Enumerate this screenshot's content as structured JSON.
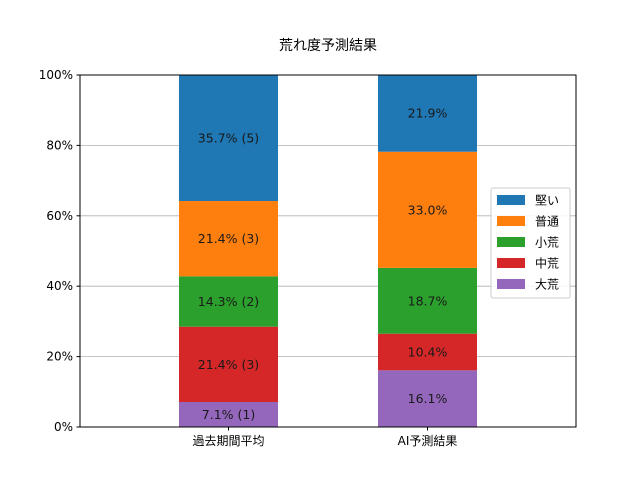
{
  "chart_data": {
    "type": "bar",
    "stacked": true,
    "title": "荒れ度予測結果",
    "categories": [
      "過去期間平均",
      "AI予測結果"
    ],
    "ylim": [
      0,
      100
    ],
    "yticks": [
      "0%",
      "20%",
      "40%",
      "60%",
      "80%",
      "100%"
    ],
    "grid": "horizontal",
    "legend_position": "right",
    "series": [
      {
        "name": "大荒",
        "color": "#9467bd",
        "values": [
          7.1,
          16.1
        ],
        "labels": [
          "7.1% (1)",
          "16.1%"
        ]
      },
      {
        "name": "中荒",
        "color": "#d62728",
        "values": [
          21.4,
          10.4
        ],
        "labels": [
          "21.4% (3)",
          "10.4%"
        ]
      },
      {
        "name": "小荒",
        "color": "#2ca02c",
        "values": [
          14.3,
          18.7
        ],
        "labels": [
          "14.3% (2)",
          "18.7%"
        ]
      },
      {
        "name": "普通",
        "color": "#ff7f0e",
        "values": [
          21.4,
          33.0
        ],
        "labels": [
          "21.4% (3)",
          "33.0%"
        ]
      },
      {
        "name": "堅い",
        "color": "#1f77b4",
        "values": [
          35.7,
          21.9
        ],
        "labels": [
          "35.7% (5)",
          "21.9%"
        ]
      }
    ],
    "legend_order": [
      "堅い",
      "普通",
      "小荒",
      "中荒",
      "大荒"
    ]
  }
}
